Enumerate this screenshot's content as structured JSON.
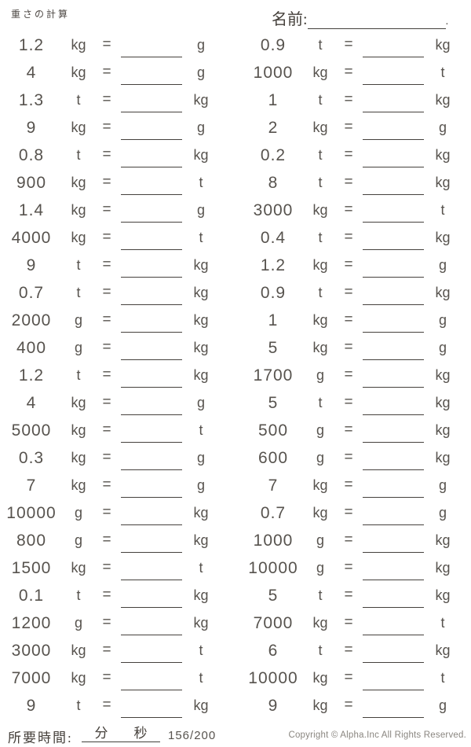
{
  "header": {
    "title": "重さの計算",
    "name_label": "名前:",
    "name_line_end": "."
  },
  "problems": {
    "equals_sign": "=",
    "left": [
      {
        "value": "1.2",
        "from": "kg",
        "to": "g"
      },
      {
        "value": "4",
        "from": "kg",
        "to": "g"
      },
      {
        "value": "1.3",
        "from": "t",
        "to": "kg"
      },
      {
        "value": "9",
        "from": "kg",
        "to": "g"
      },
      {
        "value": "0.8",
        "from": "t",
        "to": "kg"
      },
      {
        "value": "900",
        "from": "kg",
        "to": "t"
      },
      {
        "value": "1.4",
        "from": "kg",
        "to": "g"
      },
      {
        "value": "4000",
        "from": "kg",
        "to": "t"
      },
      {
        "value": "9",
        "from": "t",
        "to": "kg"
      },
      {
        "value": "0.7",
        "from": "t",
        "to": "kg"
      },
      {
        "value": "2000",
        "from": "g",
        "to": "kg"
      },
      {
        "value": "400",
        "from": "g",
        "to": "kg"
      },
      {
        "value": "1.2",
        "from": "t",
        "to": "kg"
      },
      {
        "value": "4",
        "from": "kg",
        "to": "g"
      },
      {
        "value": "5000",
        "from": "kg",
        "to": "t"
      },
      {
        "value": "0.3",
        "from": "kg",
        "to": "g"
      },
      {
        "value": "7",
        "from": "kg",
        "to": "g"
      },
      {
        "value": "10000",
        "from": "g",
        "to": "kg"
      },
      {
        "value": "800",
        "from": "g",
        "to": "kg"
      },
      {
        "value": "1500",
        "from": "kg",
        "to": "t"
      },
      {
        "value": "0.1",
        "from": "t",
        "to": "kg"
      },
      {
        "value": "1200",
        "from": "g",
        "to": "kg"
      },
      {
        "value": "3000",
        "from": "kg",
        "to": "t"
      },
      {
        "value": "7000",
        "from": "kg",
        "to": "t"
      },
      {
        "value": "9",
        "from": "t",
        "to": "kg"
      }
    ],
    "right": [
      {
        "value": "0.9",
        "from": "t",
        "to": "kg"
      },
      {
        "value": "1000",
        "from": "kg",
        "to": "t"
      },
      {
        "value": "1",
        "from": "t",
        "to": "kg"
      },
      {
        "value": "2",
        "from": "kg",
        "to": "g"
      },
      {
        "value": "0.2",
        "from": "t",
        "to": "kg"
      },
      {
        "value": "8",
        "from": "t",
        "to": "kg"
      },
      {
        "value": "3000",
        "from": "kg",
        "to": "t"
      },
      {
        "value": "0.4",
        "from": "t",
        "to": "kg"
      },
      {
        "value": "1.2",
        "from": "kg",
        "to": "g"
      },
      {
        "value": "0.9",
        "from": "t",
        "to": "kg"
      },
      {
        "value": "1",
        "from": "kg",
        "to": "g"
      },
      {
        "value": "5",
        "from": "kg",
        "to": "g"
      },
      {
        "value": "1700",
        "from": "g",
        "to": "kg"
      },
      {
        "value": "5",
        "from": "t",
        "to": "kg"
      },
      {
        "value": "500",
        "from": "g",
        "to": "kg"
      },
      {
        "value": "600",
        "from": "g",
        "to": "kg"
      },
      {
        "value": "7",
        "from": "kg",
        "to": "g"
      },
      {
        "value": "0.7",
        "from": "kg",
        "to": "g"
      },
      {
        "value": "1000",
        "from": "g",
        "to": "kg"
      },
      {
        "value": "10000",
        "from": "g",
        "to": "kg"
      },
      {
        "value": "5",
        "from": "t",
        "to": "kg"
      },
      {
        "value": "7000",
        "from": "kg",
        "to": "t"
      },
      {
        "value": "6",
        "from": "t",
        "to": "kg"
      },
      {
        "value": "10000",
        "from": "kg",
        "to": "t"
      },
      {
        "value": "9",
        "from": "kg",
        "to": "g"
      }
    ]
  },
  "footer": {
    "time_label": "所要時間:",
    "minutes_label": "分",
    "seconds_label": "秒",
    "page_number": "156/200",
    "copyright": "Copyright © Alpha.Inc All Rights Reserved."
  },
  "colors": {
    "text": "#57534e",
    "line": "#43403c",
    "muted": "#8a8680",
    "background": "#ffffff"
  }
}
